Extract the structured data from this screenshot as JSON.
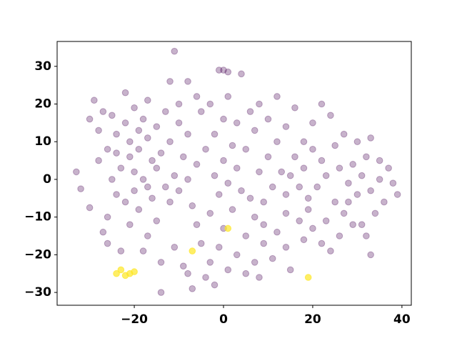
{
  "chart_data": {
    "type": "scatter",
    "xlim": [
      -37.3,
      42.1
    ],
    "ylim": [
      -33.4,
      36.6
    ],
    "xticks": [
      {
        "value": -20,
        "label": "−20"
      },
      0,
      20,
      40
    ],
    "yticks": [
      {
        "value": -30,
        "label": "−30"
      },
      {
        "value": -20,
        "label": "−20"
      },
      {
        "value": -10,
        "label": "−10"
      },
      0,
      10,
      20,
      30
    ],
    "series": [
      {
        "color": "#440154",
        "alpha": 0.3,
        "x": [
          -11,
          -1,
          0,
          1,
          4,
          -8,
          -12,
          1,
          12,
          -33,
          -32,
          -30,
          33,
          -14,
          -7,
          -2,
          8,
          15,
          39,
          -29,
          -27,
          -25,
          -22,
          -20,
          -18,
          -24,
          -21,
          -19,
          -17,
          -15,
          -26,
          -28,
          -23,
          -20,
          -18,
          -16,
          -14,
          -12,
          -10,
          -13,
          -17,
          -24,
          -22,
          -19,
          -26,
          -27,
          -21,
          -17,
          -15,
          -12,
          -10,
          -8,
          -6,
          -4,
          -2,
          0,
          -5,
          -8,
          -9,
          -11,
          -13,
          -16,
          -18,
          -23,
          -14,
          -11,
          -9,
          -5,
          -3,
          -6,
          -3,
          -1,
          1,
          3,
          5,
          7,
          6,
          3,
          2,
          0,
          -2,
          4,
          2,
          0,
          -1,
          3,
          5,
          7,
          9,
          11,
          13,
          10,
          8,
          12,
          14,
          10,
          16,
          20,
          18,
          16,
          15,
          17,
          19,
          21,
          23,
          22,
          20,
          25,
          27,
          24,
          22,
          30,
          32,
          33,
          29,
          31,
          28,
          30,
          33,
          35,
          36,
          34,
          31,
          27,
          25,
          23,
          20,
          17,
          14,
          12,
          9,
          11,
          7,
          5,
          14,
          18,
          22,
          26,
          24,
          37,
          38,
          35,
          26,
          18,
          14,
          6,
          -7,
          -20,
          -25,
          -28,
          -30,
          -22,
          -19,
          -15,
          -21,
          -24,
          -17,
          -26,
          -8,
          -4,
          1,
          9,
          19,
          28,
          32,
          29,
          -10,
          -6,
          -3,
          8
        ],
        "y": [
          34,
          29,
          29,
          28.5,
          28,
          26,
          26,
          22,
          22,
          2,
          -2.5,
          -7.5,
          -20,
          -30,
          -29,
          -28,
          -26,
          -24,
          -4,
          21,
          18,
          17,
          23,
          19,
          16,
          12,
          10,
          8,
          11,
          14,
          8,
          5,
          3,
          2,
          0,
          5,
          7,
          10,
          15,
          18,
          21,
          -4,
          -6,
          -8,
          -10,
          -14,
          -12,
          -15,
          -11,
          -6,
          -3,
          0,
          4,
          8,
          12,
          16,
          18,
          12,
          6,
          1,
          -2,
          -5,
          -19,
          -19,
          -22,
          -18,
          -23,
          -17,
          -22,
          -12,
          -9,
          -4,
          -1,
          3,
          8,
          13,
          18,
          15,
          9,
          5,
          1,
          -3,
          -8,
          -13,
          -18,
          -20,
          -15,
          -10,
          -6,
          -2,
          2,
          6,
          2,
          10,
          14,
          16,
          19,
          15,
          10,
          6,
          1,
          -2,
          -5,
          -2,
          1,
          5,
          8,
          9,
          12,
          17,
          20,
          10,
          6,
          11,
          4,
          1,
          -1,
          -4,
          -3,
          0,
          -6,
          -9,
          -12,
          -9,
          -6,
          -11,
          -13,
          -11,
          -9,
          -14,
          -17,
          -21,
          -22,
          -25,
          -18,
          -16,
          -17,
          -15,
          -19,
          3,
          -1,
          5,
          3,
          3,
          -4,
          -5,
          -7,
          -3,
          0,
          13,
          16,
          15,
          13,
          3,
          6,
          7,
          -2,
          -17,
          -25,
          -26,
          -24,
          -12,
          -8,
          -6,
          -15,
          -12,
          20,
          22,
          20,
          20
        ]
      },
      {
        "color": "#fde725",
        "alpha": 0.7,
        "x": [
          -23,
          -24,
          -21,
          -20,
          -22,
          -7,
          1,
          19
        ],
        "y": [
          -24,
          -25,
          -25,
          -24.5,
          -25.5,
          -19,
          -13,
          -26
        ]
      }
    ]
  }
}
